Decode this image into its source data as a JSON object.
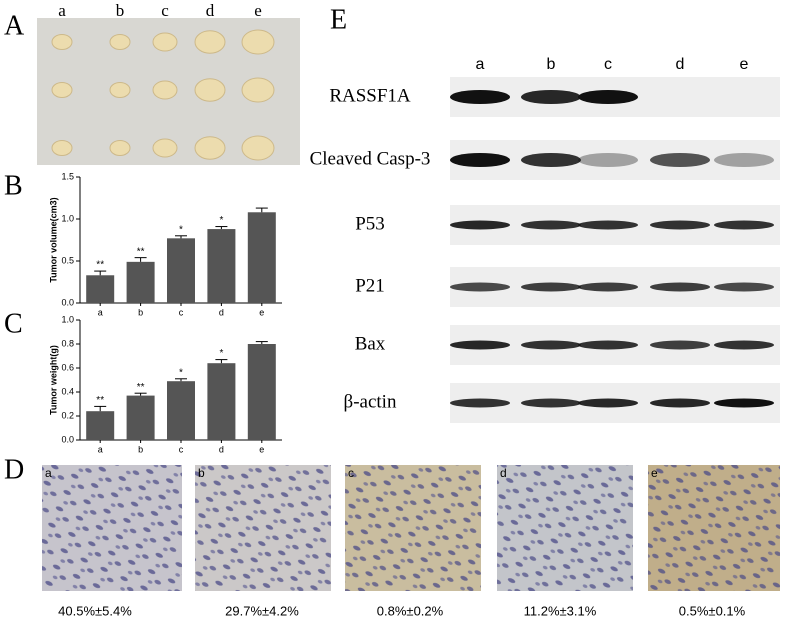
{
  "photo": {
    "label": "A",
    "lanes": [
      "a",
      "b",
      "c",
      "d",
      "e"
    ]
  },
  "chart_data": [
    {
      "type": "bar",
      "label": "B",
      "y_label": "Tumor volume(cm3)",
      "categories": [
        "a",
        "b",
        "c",
        "d",
        "e"
      ],
      "values": [
        0.33,
        0.49,
        0.77,
        0.88,
        1.08
      ],
      "errors": [
        0.05,
        0.05,
        0.03,
        0.03,
        0.05
      ],
      "annotations": [
        "**",
        "**",
        "*",
        "*",
        null
      ],
      "color": "#555555",
      "ylim": [
        0,
        1.5
      ],
      "yticks": [
        {
          "value": 0,
          "label": "0.0"
        },
        0.5,
        {
          "value": 1,
          "label": "1.0"
        },
        1.5
      ]
    },
    {
      "type": "bar",
      "label": "C",
      "y_label": "Tumor weight(g)",
      "categories": [
        "a",
        "b",
        "c",
        "d",
        "e"
      ],
      "values": [
        0.24,
        0.37,
        0.49,
        0.64,
        0.8
      ],
      "errors": [
        0.04,
        0.02,
        0.02,
        0.03,
        0.02
      ],
      "annotations": [
        "**",
        "**",
        "*",
        "*",
        null
      ],
      "color": "#555555",
      "ylim": [
        0,
        1
      ],
      "yticks": [
        {
          "value": 0,
          "label": "0.0"
        },
        0.2,
        0.4,
        0.6,
        0.8,
        {
          "value": 1,
          "label": "1.0"
        }
      ]
    }
  ],
  "blot": {
    "label": "E",
    "lanes": [
      "a",
      "b",
      "c",
      "d",
      "e"
    ],
    "rows": [
      "RASSF1A",
      "Cleaved Casp-3",
      "P53",
      "P21",
      "Bax",
      "β-actin"
    ]
  },
  "ihc": {
    "label": "D",
    "images": [
      {
        "label": "a",
        "caption": "40.5%±5.4%"
      },
      {
        "label": "b",
        "caption": "29.7%±4.2%"
      },
      {
        "label": "c",
        "caption": "0.8%±0.2%"
      },
      {
        "label": "d",
        "caption": "11.2%±3.1%"
      },
      {
        "label": "e",
        "caption": "0.5%±0.1%"
      }
    ]
  }
}
